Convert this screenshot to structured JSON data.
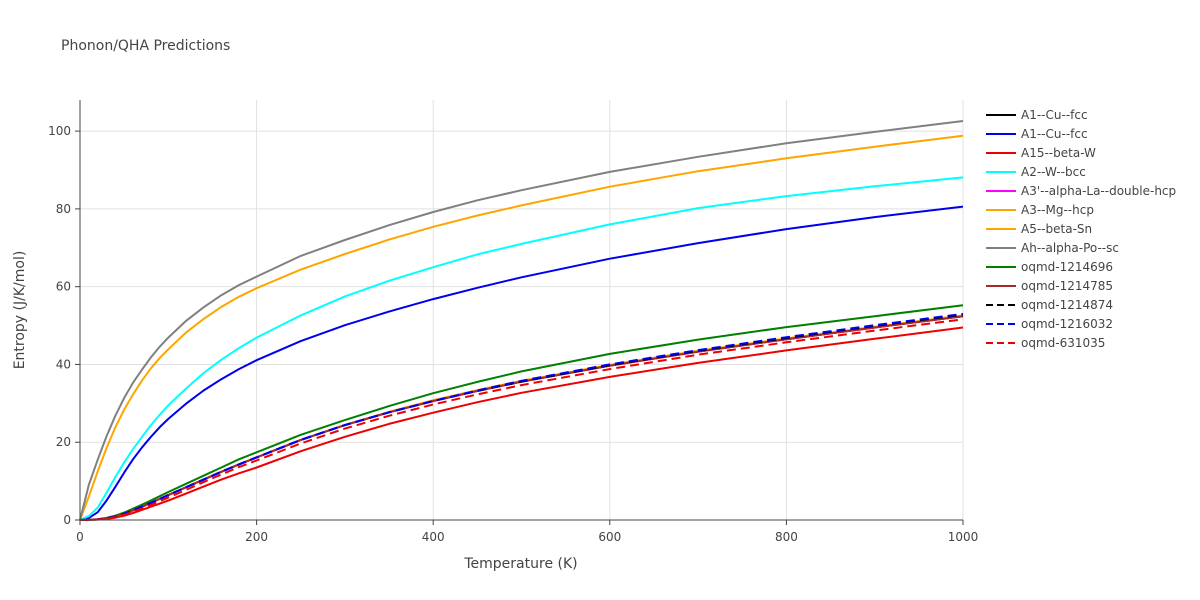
{
  "chart_data": {
    "type": "line",
    "title": "Phonon/QHA Predictions",
    "xlabel": "Temperature (K)",
    "ylabel": "Entropy (J/K/mol)",
    "xlim": [
      0,
      1000
    ],
    "ylim": [
      0,
      108
    ],
    "xticks": [
      0,
      200,
      400,
      600,
      800,
      1000
    ],
    "yticks": [
      0,
      20,
      40,
      60,
      80,
      100
    ],
    "grid": true,
    "legend_position": "right",
    "x": [
      0,
      10,
      20,
      30,
      40,
      50,
      60,
      70,
      80,
      90,
      100,
      120,
      140,
      160,
      180,
      200,
      250,
      300,
      350,
      400,
      450,
      500,
      600,
      700,
      800,
      900,
      1000
    ],
    "series": [
      {
        "name": "A1--Cu--fcc",
        "color": "#000000",
        "dash": "solid",
        "values": [
          0,
          0.05,
          0.15,
          0.4,
          0.9,
          1.6,
          2.5,
          3.4,
          4.4,
          5.4,
          6.4,
          8.4,
          10.4,
          12.4,
          14.3,
          16.1,
          20.6,
          24.4,
          27.7,
          30.6,
          33.2,
          35.6,
          39.7,
          43.3,
          46.5,
          49.5,
          52.4
        ]
      },
      {
        "name": "A1--Cu--fcc",
        "color": "#0000ee",
        "dash": "solid",
        "values": [
          0,
          0.5,
          2.0,
          5.0,
          8.5,
          12.2,
          15.6,
          18.6,
          21.3,
          23.8,
          26.0,
          29.9,
          33.3,
          36.2,
          38.8,
          41.1,
          46.0,
          50.1,
          53.6,
          56.8,
          59.7,
          62.4,
          67.2,
          71.2,
          74.8,
          77.9,
          80.6
        ]
      },
      {
        "name": "A15--beta-W",
        "color": "#ee0000",
        "dash": "solid",
        "values": [
          0,
          0.02,
          0.1,
          0.3,
          0.6,
          1.1,
          1.8,
          2.6,
          3.4,
          4.2,
          5.0,
          6.8,
          8.6,
          10.4,
          12.0,
          13.5,
          17.7,
          21.4,
          24.7,
          27.6,
          30.3,
          32.7,
          36.8,
          40.4,
          43.6,
          46.6,
          49.5
        ]
      },
      {
        "name": "A2--W--bcc",
        "color": "#00ffff",
        "dash": "solid",
        "values": [
          0,
          1.0,
          3.2,
          7.0,
          11.0,
          14.8,
          18.2,
          21.3,
          24.3,
          27.0,
          29.5,
          33.8,
          37.8,
          41.2,
          44.2,
          46.9,
          52.6,
          57.5,
          61.5,
          65.0,
          68.3,
          71.0,
          76.0,
          80.2,
          83.3,
          85.8,
          88.1
        ]
      },
      {
        "name": "A3'--alpha-La--double-hcp",
        "color": "#ff00ff",
        "dash": "solid",
        "values": [
          0,
          0.05,
          0.15,
          0.4,
          0.9,
          1.6,
          2.5,
          3.4,
          4.4,
          5.4,
          6.4,
          8.4,
          10.4,
          12.4,
          14.3,
          16.1,
          20.6,
          24.4,
          27.7,
          30.6,
          33.2,
          35.6,
          39.7,
          43.3,
          46.5,
          49.5,
          52.4
        ]
      },
      {
        "name": "A3--Mg--hcp",
        "color": "#ffa500",
        "dash": "solid",
        "values": [
          0,
          0.05,
          0.15,
          0.4,
          0.9,
          1.6,
          2.5,
          3.4,
          4.4,
          5.4,
          6.4,
          8.4,
          10.4,
          12.4,
          14.3,
          16.1,
          20.6,
          24.4,
          27.8,
          30.8,
          33.4,
          35.8,
          39.9,
          43.5,
          46.7,
          49.7,
          52.6
        ]
      },
      {
        "name": "A5--beta-Sn",
        "color": "#ffa500",
        "dash": "solid",
        "values": [
          0,
          6.0,
          12.5,
          18.5,
          23.8,
          28.4,
          32.3,
          35.8,
          38.9,
          41.6,
          43.9,
          48.2,
          51.7,
          54.8,
          57.4,
          59.6,
          64.4,
          68.4,
          72.1,
          75.4,
          78.3,
          80.9,
          85.7,
          89.7,
          93.0,
          96.0,
          98.8
        ]
      },
      {
        "name": "Ah--alpha-Po--sc",
        "color": "#808080",
        "dash": "solid",
        "values": [
          0,
          9.0,
          15.5,
          21.5,
          26.8,
          31.4,
          35.3,
          38.6,
          41.7,
          44.5,
          46.9,
          51.2,
          54.7,
          57.8,
          60.4,
          62.6,
          67.9,
          72.0,
          75.8,
          79.2,
          82.2,
          84.8,
          89.5,
          93.4,
          96.9,
          99.8,
          102.6
        ]
      },
      {
        "name": "oqmd-1214696",
        "color": "#008000",
        "dash": "solid",
        "values": [
          0,
          0.06,
          0.2,
          0.55,
          1.1,
          1.9,
          2.9,
          3.9,
          5.0,
          6.1,
          7.2,
          9.3,
          11.4,
          13.5,
          15.6,
          17.4,
          21.9,
          25.7,
          29.3,
          32.6,
          35.5,
          38.2,
          42.7,
          46.4,
          49.6,
          52.4,
          55.2
        ]
      },
      {
        "name": "oqmd-1214785",
        "color": "#a52a2a",
        "dash": "solid",
        "values": [
          0,
          0.05,
          0.15,
          0.4,
          0.9,
          1.6,
          2.5,
          3.4,
          4.4,
          5.4,
          6.4,
          8.4,
          10.4,
          12.4,
          14.3,
          16.1,
          20.6,
          24.4,
          27.7,
          30.6,
          33.2,
          35.6,
          39.7,
          43.3,
          46.5,
          49.5,
          52.4
        ]
      },
      {
        "name": "oqmd-1214874",
        "color": "#000000",
        "dash": "dash",
        "values": [
          0,
          0.05,
          0.15,
          0.4,
          0.9,
          1.6,
          2.5,
          3.4,
          4.4,
          5.4,
          6.4,
          8.4,
          10.4,
          12.4,
          14.3,
          16.1,
          20.6,
          24.4,
          27.7,
          30.6,
          33.2,
          35.6,
          39.8,
          43.5,
          46.8,
          49.9,
          52.8
        ]
      },
      {
        "name": "oqmd-1216032",
        "color": "#0000ff",
        "dash": "dash",
        "values": [
          0,
          0.05,
          0.15,
          0.4,
          0.9,
          1.6,
          2.5,
          3.4,
          4.4,
          5.4,
          6.4,
          8.4,
          10.4,
          12.4,
          14.3,
          16.1,
          20.6,
          24.4,
          27.7,
          30.6,
          33.3,
          35.8,
          40.0,
          43.7,
          47.0,
          50.1,
          53.0
        ]
      },
      {
        "name": "oqmd-631035",
        "color": "#ee0000",
        "dash": "dash",
        "values": [
          0,
          0.03,
          0.12,
          0.33,
          0.75,
          1.35,
          2.1,
          2.95,
          3.85,
          4.8,
          5.75,
          7.75,
          9.75,
          11.7,
          13.6,
          15.3,
          19.7,
          23.5,
          26.8,
          29.7,
          32.3,
          34.7,
          38.8,
          42.5,
          45.7,
          48.7,
          51.6
        ]
      }
    ]
  }
}
